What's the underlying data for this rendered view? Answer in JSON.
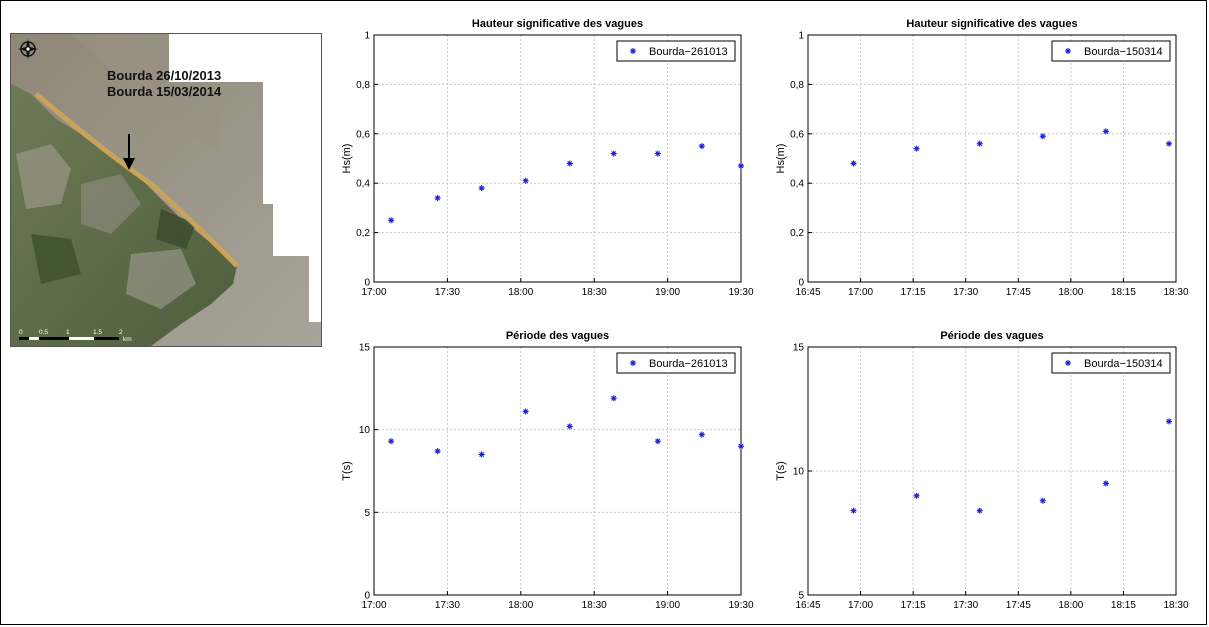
{
  "map": {
    "labels": [
      "Bourda 26/10/2013",
      "Bourda 15/03/2014"
    ],
    "scale_labels": [
      "0",
      "0.5",
      "1",
      "1.5",
      "2"
    ],
    "scale_unit": "km",
    "icon": "compass-rose-icon"
  },
  "colors": {
    "marker": "#1f1fd6",
    "grid": "#c8c8c8",
    "axis": "#000000"
  },
  "chart_data": [
    {
      "id": "hs-261013",
      "type": "scatter",
      "title": "Hauteur significative des vagues",
      "xlabel": "",
      "ylabel": "Hs(m)",
      "xlim": [
        "17:00",
        "19:30"
      ],
      "xticks": [
        "17:00",
        "17:30",
        "18:00",
        "18:30",
        "19:00",
        "19:30"
      ],
      "ylim": [
        0,
        1
      ],
      "yticks": [
        "0",
        "0,2",
        "0,4",
        "0,6",
        "0,8",
        "1"
      ],
      "grid": true,
      "legend_position": "top-right",
      "series": [
        {
          "name": "Bourda−261013",
          "marker": "asterisk",
          "x": [
            "17:07",
            "17:26",
            "17:44",
            "18:02",
            "18:20",
            "18:38",
            "18:56",
            "19:14",
            "19:30"
          ],
          "y": [
            0.25,
            0.34,
            0.38,
            0.41,
            0.48,
            0.52,
            0.52,
            0.55,
            0.47
          ]
        }
      ]
    },
    {
      "id": "hs-150314",
      "type": "scatter",
      "title": "Hauteur significative des vagues",
      "xlabel": "",
      "ylabel": "Hs(m)",
      "xlim": [
        "16:45",
        "18:30"
      ],
      "xticks": [
        "16:45",
        "17:00",
        "17:15",
        "17:30",
        "17:45",
        "18:00",
        "18:15",
        "18:30"
      ],
      "ylim": [
        0,
        1
      ],
      "yticks": [
        "0",
        "0,2",
        "0,4",
        "0,6",
        "0,8",
        "1"
      ],
      "grid": true,
      "legend_position": "top-right",
      "series": [
        {
          "name": "Bourda−150314",
          "marker": "asterisk",
          "x": [
            "16:58",
            "17:16",
            "17:34",
            "17:52",
            "18:10",
            "18:28"
          ],
          "y": [
            0.48,
            0.54,
            0.56,
            0.59,
            0.61,
            0.56
          ]
        }
      ]
    },
    {
      "id": "t-261013",
      "type": "scatter",
      "title": "Période des vagues",
      "xlabel": "",
      "ylabel": "T(s)",
      "xlim": [
        "17:00",
        "19:30"
      ],
      "xticks": [
        "17:00",
        "17:30",
        "18:00",
        "18:30",
        "19:00",
        "19:30"
      ],
      "ylim": [
        0,
        15
      ],
      "yticks": [
        "0",
        "5",
        "10",
        "15"
      ],
      "grid": true,
      "legend_position": "top-right",
      "series": [
        {
          "name": "Bourda−261013",
          "marker": "asterisk",
          "x": [
            "17:07",
            "17:26",
            "17:44",
            "18:02",
            "18:20",
            "18:38",
            "18:56",
            "19:14",
            "19:30"
          ],
          "y": [
            9.3,
            8.7,
            8.5,
            11.1,
            10.2,
            11.9,
            9.3,
            9.7,
            9.0
          ]
        }
      ]
    },
    {
      "id": "t-150314",
      "type": "scatter",
      "title": "Période des vagues",
      "xlabel": "",
      "ylabel": "T(s)",
      "xlim": [
        "16:45",
        "18:30"
      ],
      "xticks": [
        "16:45",
        "17:00",
        "17:15",
        "17:30",
        "17:45",
        "18:00",
        "18:15",
        "18:30"
      ],
      "ylim": [
        5,
        15
      ],
      "yticks": [
        "5",
        "10",
        "15"
      ],
      "grid": true,
      "legend_position": "top-right",
      "series": [
        {
          "name": "Bourda−150314",
          "marker": "asterisk",
          "x": [
            "16:58",
            "17:16",
            "17:34",
            "17:52",
            "18:10",
            "18:28"
          ],
          "y": [
            8.4,
            9.0,
            8.4,
            8.8,
            9.5,
            12.0
          ]
        }
      ]
    }
  ]
}
